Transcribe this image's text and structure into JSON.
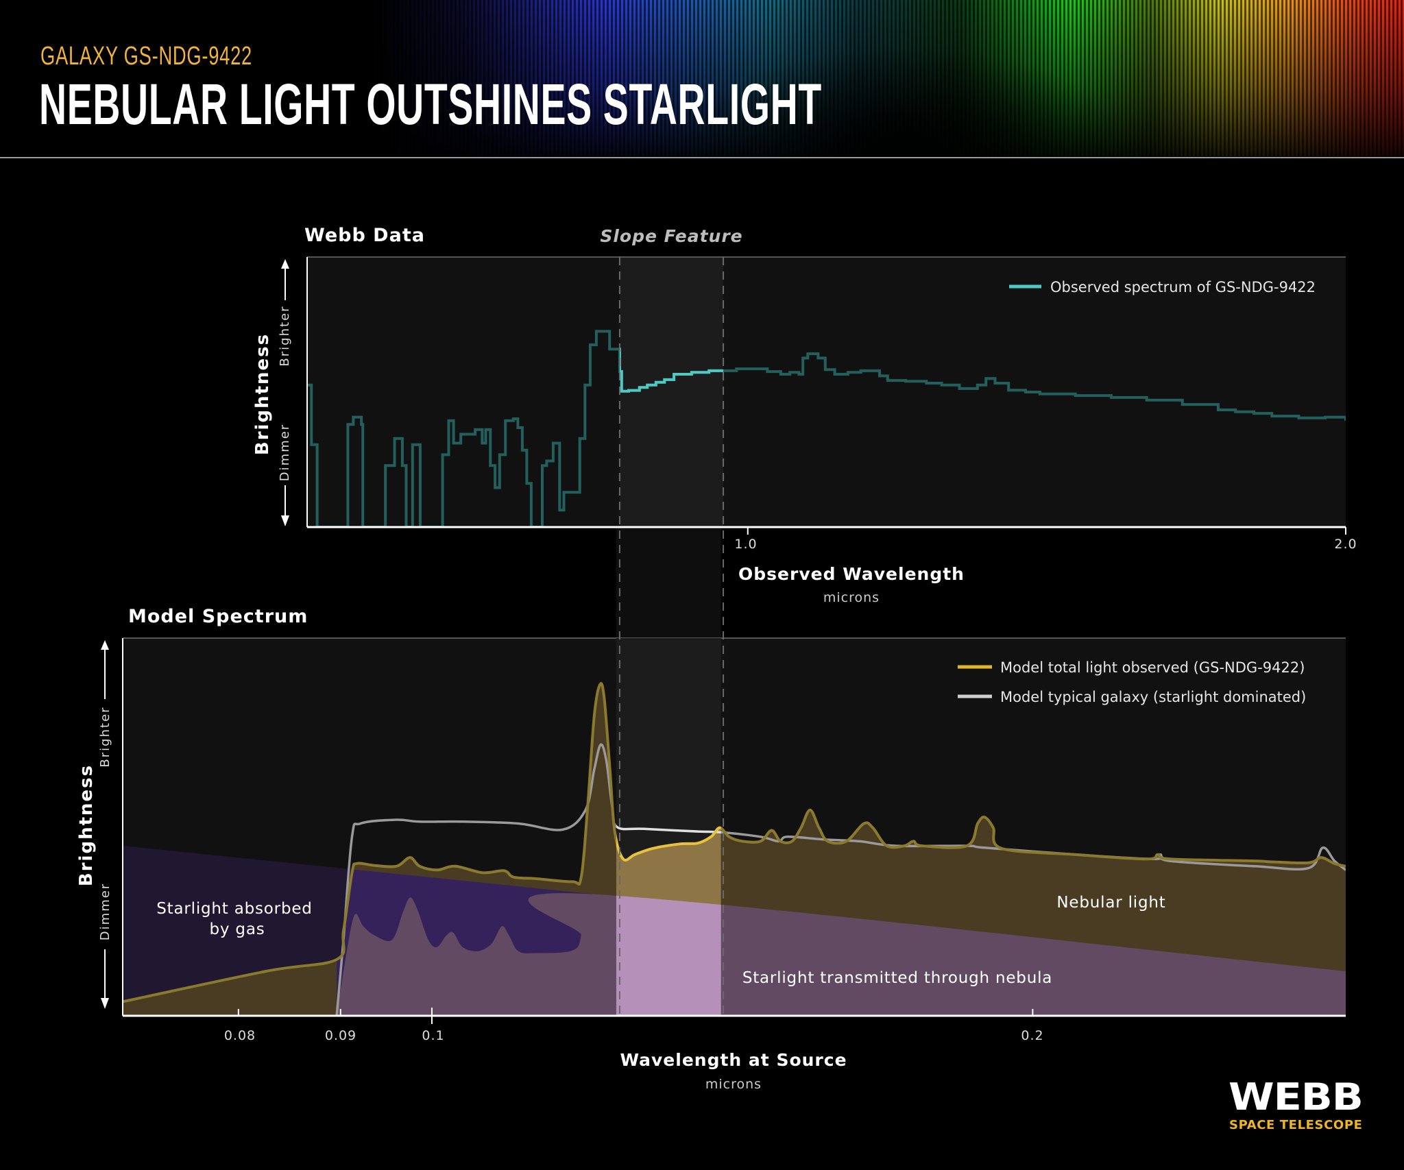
{
  "header": {
    "subtitle": "GALAXY GS-NDG-9422",
    "title": "NEBULAR LIGHT OUTSHINES STARLIGHT"
  },
  "logo": {
    "name": "WEBB",
    "tagline": "SPACE TELESCOPE",
    "tagline_color": "#f0b429"
  },
  "colors": {
    "background": "#000000",
    "plot_background": "#111111",
    "highlight_band": "#1c1c1c"
  },
  "chart_data": [
    {
      "type": "line",
      "title": "Webb Data",
      "xlabel": "Observed Wavelength",
      "xunit": "microns",
      "ylabel": "Brightness",
      "ylabel_high": "Brighter",
      "ylabel_low": "Dimmer",
      "xscale": "log",
      "xlim": [
        0.6,
        2.0
      ],
      "ylim": [
        0,
        100
      ],
      "xticks": [
        1.0,
        2.0
      ],
      "tick_labels": [
        "1.0",
        "2.0"
      ],
      "grid": false,
      "legend": {
        "position": "top-right"
      },
      "highlight": {
        "label": "Slope Feature",
        "range": [
          0.862,
          0.972
        ]
      },
      "series": [
        {
          "name": "Observed spectrum of GS-NDG-9422",
          "style": "step",
          "color": "#4fc9c4",
          "dim_color": "#23605d",
          "points": [
            [
              0.6,
              52.6
            ],
            [
              0.603,
              30.5
            ],
            [
              0.607,
              0
            ],
            [
              0.629,
              38.0
            ],
            [
              0.633,
              40.7
            ],
            [
              0.639,
              38.0
            ],
            [
              0.64,
              0
            ],
            [
              0.657,
              22.8
            ],
            [
              0.664,
              32.8
            ],
            [
              0.67,
              22.8
            ],
            [
              0.673,
              0
            ],
            [
              0.678,
              30.5
            ],
            [
              0.684,
              0
            ],
            [
              0.702,
              26.8
            ],
            [
              0.707,
              39.4
            ],
            [
              0.711,
              31.1
            ],
            [
              0.717,
              34.4
            ],
            [
              0.729,
              36.1
            ],
            [
              0.735,
              31.1
            ],
            [
              0.738,
              36.1
            ],
            [
              0.742,
              22.8
            ],
            [
              0.746,
              14.6
            ],
            [
              0.75,
              26.8
            ],
            [
              0.755,
              39.4
            ],
            [
              0.762,
              40.1
            ],
            [
              0.766,
              36.8
            ],
            [
              0.77,
              28.5
            ],
            [
              0.774,
              16.2
            ],
            [
              0.778,
              0
            ],
            [
              0.788,
              22.8
            ],
            [
              0.792,
              24.5
            ],
            [
              0.798,
              31.1
            ],
            [
              0.804,
              6.3
            ],
            [
              0.808,
              12.9
            ],
            [
              0.823,
              32.8
            ],
            [
              0.828,
              52.6
            ],
            [
              0.833,
              67.5
            ],
            [
              0.839,
              72.5
            ],
            [
              0.852,
              65.9
            ],
            [
              0.862,
              57.6
            ],
            [
              0.864,
              50.3
            ],
            [
              0.871,
              50.6
            ],
            [
              0.882,
              51.7
            ],
            [
              0.89,
              52.6
            ],
            [
              0.899,
              53.6
            ],
            [
              0.908,
              54.6
            ],
            [
              0.918,
              56.6
            ],
            [
              0.937,
              57.3
            ],
            [
              0.956,
              57.9
            ],
            [
              0.987,
              58.6
            ],
            [
              1.023,
              57.6
            ],
            [
              1.039,
              56.6
            ],
            [
              1.05,
              57.3
            ],
            [
              1.061,
              56.6
            ],
            [
              1.066,
              62.6
            ],
            [
              1.072,
              64.2
            ],
            [
              1.085,
              62.6
            ],
            [
              1.094,
              58.3
            ],
            [
              1.106,
              56.6
            ],
            [
              1.123,
              57.3
            ],
            [
              1.14,
              57.9
            ],
            [
              1.165,
              56.0
            ],
            [
              1.176,
              54.3
            ],
            [
              1.201,
              54.0
            ],
            [
              1.23,
              53.3
            ],
            [
              1.252,
              52.6
            ],
            [
              1.278,
              51.3
            ],
            [
              1.305,
              52.6
            ],
            [
              1.318,
              55.0
            ],
            [
              1.332,
              53.3
            ],
            [
              1.353,
              50.7
            ],
            [
              1.38,
              50.0
            ],
            [
              1.403,
              49.3
            ],
            [
              1.462,
              48.7
            ],
            [
              1.524,
              48.0
            ],
            [
              1.588,
              47.0
            ],
            [
              1.655,
              45.4
            ],
            [
              1.725,
              43.4
            ],
            [
              1.76,
              42.7
            ],
            [
              1.798,
              42.1
            ],
            [
              1.836,
              41.1
            ],
            [
              1.894,
              40.4
            ],
            [
              1.953,
              40.7
            ],
            [
              2.0,
              39.4
            ]
          ]
        }
      ]
    },
    {
      "type": "area",
      "title": "Model Spectrum",
      "xlabel": "Wavelength at Source",
      "xunit": "microns",
      "ylabel": "Brightness",
      "ylabel_high": "Brighter",
      "ylabel_low": "Dimmer",
      "xscale": "log",
      "xlim": [
        0.07,
        0.287
      ],
      "ylim": [
        0,
        100
      ],
      "xticks": [
        0.08,
        0.09,
        0.1,
        0.2
      ],
      "tick_labels": [
        "0.08",
        "0.09",
        "0.1",
        "0.2"
      ],
      "grid": false,
      "legend": {
        "position": "top-right"
      },
      "highlight": {
        "range": [
          0.1237,
          0.1396
        ]
      },
      "annotations": {
        "absorbed_line1": "Starlight absorbed",
        "absorbed_line2": "by gas",
        "nebular": "Nebular light",
        "transmitted": "Starlight transmitted through nebula"
      },
      "area_colors": {
        "absorbed_outer": "#201830",
        "absorbed": "#35225a",
        "nebular": "#4a3c22",
        "transmitted": "#624a62"
      },
      "series": [
        {
          "name": "Model total light observed (GS-NDG-9422)",
          "color": "#e8c23a",
          "dim_color": "#8b7a2e",
          "points": [
            [
              0.0698,
              3.6
            ],
            [
              0.0826,
              11.8
            ],
            [
              0.0896,
              14.9
            ],
            [
              0.0903,
              22.5
            ],
            [
              0.0912,
              37.9
            ],
            [
              0.0917,
              40.3
            ],
            [
              0.0936,
              39.8
            ],
            [
              0.096,
              39.6
            ],
            [
              0.0975,
              41.9
            ],
            [
              0.0986,
              39.6
            ],
            [
              0.1006,
              38.6
            ],
            [
              0.1027,
              39.6
            ],
            [
              0.106,
              37.9
            ],
            [
              0.1087,
              38.4
            ],
            [
              0.1099,
              36.7
            ],
            [
              0.1128,
              36.3
            ],
            [
              0.1176,
              35.5
            ],
            [
              0.1188,
              36.7
            ],
            [
              0.1197,
              55.7
            ],
            [
              0.1206,
              79.4
            ],
            [
              0.1214,
              87.7
            ],
            [
              0.122,
              84.1
            ],
            [
              0.1228,
              65.2
            ],
            [
              0.1235,
              48.6
            ],
            [
              0.1247,
              41.5
            ],
            [
              0.1264,
              42.7
            ],
            [
              0.129,
              44.3
            ],
            [
              0.1331,
              45.5
            ],
            [
              0.1359,
              45.7
            ],
            [
              0.138,
              47.4
            ],
            [
              0.1394,
              49.8
            ],
            [
              0.1409,
              47.4
            ],
            [
              0.1431,
              46.2
            ],
            [
              0.1461,
              46.2
            ],
            [
              0.148,
              49.1
            ],
            [
              0.1495,
              46.2
            ],
            [
              0.1515,
              46.2
            ],
            [
              0.1531,
              49.8
            ],
            [
              0.1547,
              54.5
            ],
            [
              0.1563,
              49.8
            ],
            [
              0.1579,
              46.2
            ],
            [
              0.1613,
              46.2
            ],
            [
              0.1646,
              50.9
            ],
            [
              0.1663,
              49.8
            ],
            [
              0.169,
              45.0
            ],
            [
              0.1725,
              45.0
            ],
            [
              0.1743,
              46.2
            ],
            [
              0.176,
              45.0
            ],
            [
              0.1854,
              45.0
            ],
            [
              0.1877,
              50.9
            ],
            [
              0.1892,
              52.6
            ],
            [
              0.1911,
              49.8
            ],
            [
              0.193,
              44.3
            ],
            [
              0.21,
              42.7
            ],
            [
              0.2281,
              41.5
            ],
            [
              0.2311,
              42.7
            ],
            [
              0.2343,
              41.5
            ],
            [
              0.2584,
              41.0
            ],
            [
              0.2627,
              40.8
            ],
            [
              0.2749,
              40.5
            ],
            [
              0.279,
              41.9
            ],
            [
              0.2833,
              40.3
            ],
            [
              0.287,
              39.6
            ]
          ]
        },
        {
          "name": "Model typical galaxy (starlight dominated)",
          "color": "#e0e0e0",
          "dim_color": "#9a9a9a",
          "points": [
            [
              0.0896,
              0
            ],
            [
              0.0903,
              20.1
            ],
            [
              0.0912,
              47.4
            ],
            [
              0.0921,
              50.9
            ],
            [
              0.096,
              51.9
            ],
            [
              0.0986,
              51.4
            ],
            [
              0.1038,
              51.4
            ],
            [
              0.1105,
              50.9
            ],
            [
              0.1163,
              49.3
            ],
            [
              0.1194,
              54.5
            ],
            [
              0.1206,
              65.2
            ],
            [
              0.1215,
              71.8
            ],
            [
              0.1223,
              67.5
            ],
            [
              0.1231,
              55.7
            ],
            [
              0.1238,
              50.0
            ],
            [
              0.1277,
              49.5
            ],
            [
              0.1359,
              48.8
            ],
            [
              0.1396,
              48.6
            ],
            [
              0.1461,
              47.4
            ],
            [
              0.1492,
              46.2
            ],
            [
              0.1507,
              47.4
            ],
            [
              0.1571,
              46.7
            ],
            [
              0.1638,
              46.2
            ],
            [
              0.1707,
              45.0
            ],
            [
              0.1854,
              45.0
            ],
            [
              0.1892,
              44.5
            ],
            [
              0.21,
              42.7
            ],
            [
              0.2301,
              41.5
            ],
            [
              0.2318,
              42.7
            ],
            [
              0.2343,
              41.0
            ],
            [
              0.2584,
              39.6
            ],
            [
              0.2749,
              39.1
            ],
            [
              0.2795,
              44.5
            ],
            [
              0.2833,
              41.0
            ],
            [
              0.287,
              38.6
            ]
          ]
        },
        {
          "name": "Starlight absorbed by gas",
          "role": "intrinsic starlight boundary",
          "points": [
            [
              0.07,
              45.0
            ],
            [
              0.287,
              11.8
            ]
          ]
        },
        {
          "name": "Starlight transmitted through nebula",
          "role": "transmitted starlight boundary",
          "points": [
            [
              0.0896,
              0
            ],
            [
              0.0907,
              17.8
            ],
            [
              0.0915,
              26.8
            ],
            [
              0.0924,
              23.7
            ],
            [
              0.0936,
              21.3
            ],
            [
              0.0955,
              20.1
            ],
            [
              0.0967,
              27.3
            ],
            [
              0.0975,
              31.3
            ],
            [
              0.0983,
              28.4
            ],
            [
              0.0996,
              20.1
            ],
            [
              0.1006,
              18.2
            ],
            [
              0.1017,
              21.3
            ],
            [
              0.1025,
              22.0
            ],
            [
              0.1036,
              18.2
            ],
            [
              0.1054,
              17.1
            ],
            [
              0.1071,
              19.0
            ],
            [
              0.1084,
              23.7
            ],
            [
              0.1093,
              21.3
            ],
            [
              0.1105,
              17.1
            ],
            [
              0.1128,
              16.6
            ],
            [
              0.1176,
              17.3
            ],
            [
              0.1188,
              21.3
            ],
            [
              0.1194,
              32.3
            ],
            [
              0.287,
              11.8
            ]
          ]
        }
      ]
    }
  ]
}
